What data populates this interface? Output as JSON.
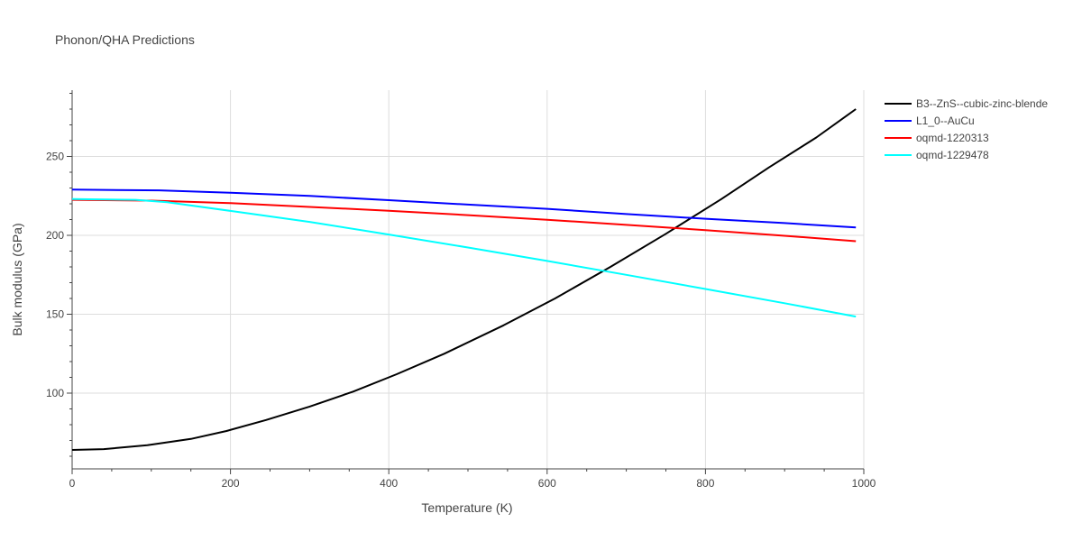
{
  "chart_data": {
    "type": "line",
    "title": "Phonon/QHA Predictions",
    "xlabel": "Temperature (K)",
    "ylabel": "Bulk modulus (GPa)",
    "xlim": [
      0,
      1000
    ],
    "ylim": [
      52,
      292
    ],
    "xticks": [
      0,
      200,
      400,
      600,
      800,
      1000
    ],
    "yticks": [
      100,
      150,
      200,
      250
    ],
    "grid": true,
    "legend_position": "top-right",
    "series": [
      {
        "name": "B3--ZnS--cubic-zinc-blende",
        "color": "#000000",
        "x": [
          0,
          40,
          95,
          150,
          195,
          245,
          300,
          355,
          410,
          470,
          545,
          610,
          680,
          750,
          820,
          880,
          940,
          990
        ],
        "y": [
          64,
          64.5,
          67,
          71,
          76,
          83,
          91.5,
          101,
          112,
          125,
          143,
          160,
          180,
          201,
          223,
          243,
          262,
          280
        ]
      },
      {
        "name": "L1_0--AuCu",
        "color": "#0000ff",
        "x": [
          0,
          110,
          200,
          300,
          400,
          500,
          600,
          700,
          800,
          900,
          990
        ],
        "y": [
          229,
          228.5,
          227,
          225,
          222.3,
          219.5,
          216.8,
          213.5,
          210.5,
          207.8,
          205
        ]
      },
      {
        "name": "oqmd-1220313",
        "color": "#ff0000",
        "x": [
          0,
          100,
          200,
          300,
          400,
          500,
          600,
          700,
          800,
          900,
          990
        ],
        "y": [
          222.5,
          222,
          220.4,
          218,
          215.6,
          212.8,
          209.9,
          206.6,
          203.3,
          199.7,
          196.3
        ]
      },
      {
        "name": "oqmd-1229478",
        "color": "#00ffff",
        "x": [
          0,
          80,
          120,
          200,
          300,
          400,
          500,
          600,
          700,
          800,
          900,
          990
        ],
        "y": [
          223,
          222.5,
          221,
          215.5,
          208.5,
          200.5,
          192.3,
          183.8,
          175,
          166,
          157,
          148.5
        ]
      }
    ]
  }
}
